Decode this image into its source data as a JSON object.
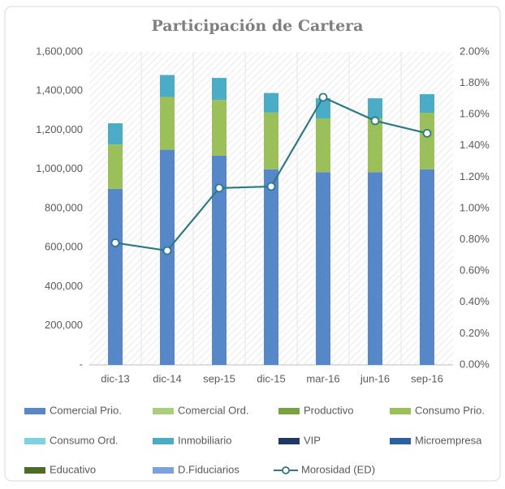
{
  "chart_data": {
    "type": "bar_line",
    "title": "Participación de Cartera",
    "categories": [
      "dic-13",
      "dic-14",
      "sep-15",
      "dic-15",
      "mar-16",
      "jun-16",
      "sep-16"
    ],
    "series": [
      {
        "name": "Comercial Prio.",
        "color": "#5687c9",
        "values": [
          900000,
          1100000,
          1070000,
          1000000,
          985000,
          985000,
          1000000
        ]
      },
      {
        "name": "Comercial Ord.",
        "color": "#a9cf7c",
        "values": [
          0,
          0,
          0,
          0,
          0,
          0,
          0
        ]
      },
      {
        "name": "Productivo",
        "color": "#77a33e",
        "values": [
          0,
          0,
          0,
          0,
          0,
          0,
          0
        ]
      },
      {
        "name": "Consumo Prio.",
        "color": "#9bc05a",
        "values": [
          227000,
          270000,
          285000,
          290000,
          275000,
          275000,
          289000
        ]
      },
      {
        "name": "Consumo Ord.",
        "color": "#7fd0e0",
        "values": [
          0,
          0,
          0,
          0,
          0,
          0,
          0
        ]
      },
      {
        "name": "Inmobiliario",
        "color": "#4bacc6",
        "values": [
          108000,
          112000,
          112000,
          100000,
          103000,
          103000,
          95000
        ]
      },
      {
        "name": "VIP",
        "color": "#1f3864",
        "values": [
          0,
          0,
          0,
          0,
          0,
          0,
          0
        ]
      },
      {
        "name": "Microempresa",
        "color": "#2e5f9e",
        "values": [
          0,
          0,
          0,
          0,
          0,
          0,
          0
        ]
      },
      {
        "name": "Educativo",
        "color": "#4e6b28",
        "values": [
          0,
          0,
          0,
          0,
          0,
          0,
          0
        ]
      },
      {
        "name": "D.Fiduciarios",
        "color": "#7aa3dc",
        "values": [
          0,
          0,
          0,
          0,
          0,
          0,
          0
        ]
      },
      {
        "name": "Morosidad (ED)",
        "color": "#2c7a86",
        "axis": "y2",
        "values": [
          0.78,
          0.73,
          1.13,
          1.14,
          1.71,
          1.56,
          1.48
        ]
      }
    ],
    "ylim": [
      0,
      1600000
    ],
    "yticks": [
      {
        "value": 0,
        "label": "-"
      },
      {
        "value": 200000,
        "label": "200,000"
      },
      {
        "value": 400000,
        "label": "400,000"
      },
      {
        "value": 600000,
        "label": "600,000"
      },
      {
        "value": 800000,
        "label": "800,000"
      },
      {
        "value": 1000000,
        "label": "1,000,000"
      },
      {
        "value": 1200000,
        "label": "1,200,000"
      },
      {
        "value": 1400000,
        "label": "1,400,000"
      },
      {
        "value": 1600000,
        "label": "1,600,000"
      }
    ],
    "y2lim": [
      0,
      2
    ],
    "y2ticks": [
      {
        "value": 0,
        "label": "0.00%"
      },
      {
        "value": 0.2,
        "label": "0.20%"
      },
      {
        "value": 0.4,
        "label": "0.40%"
      },
      {
        "value": 0.6,
        "label": "0.60%"
      },
      {
        "value": 0.8,
        "label": "0.80%"
      },
      {
        "value": 1.0,
        "label": "1.00%"
      },
      {
        "value": 1.2,
        "label": "1.20%"
      },
      {
        "value": 1.4,
        "label": "1.40%"
      },
      {
        "value": 1.6,
        "label": "1.60%"
      },
      {
        "value": 1.8,
        "label": "1.80%"
      },
      {
        "value": 2.0,
        "label": "2.00%"
      }
    ],
    "grid": true,
    "legend": "bottom"
  }
}
